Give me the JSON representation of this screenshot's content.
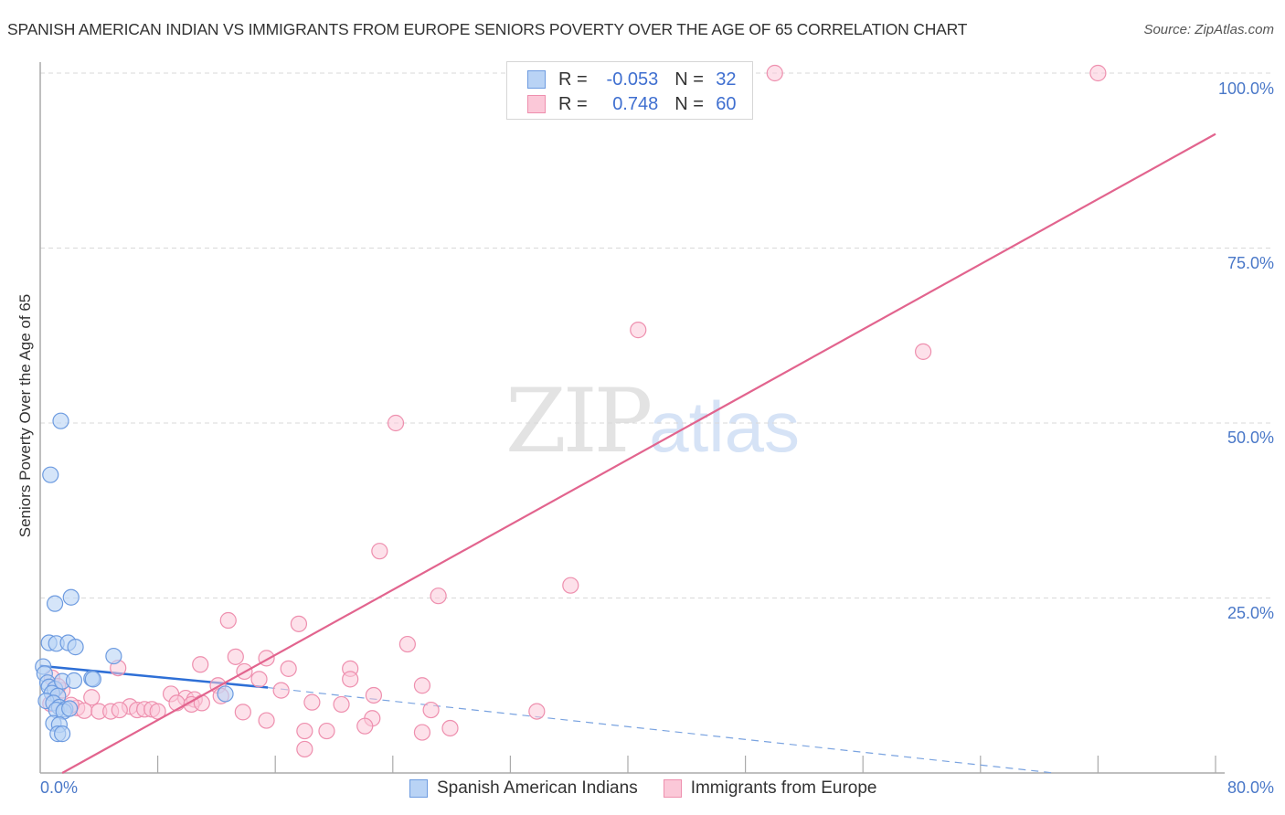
{
  "header": {
    "title": "SPANISH AMERICAN INDIAN VS IMMIGRANTS FROM EUROPE SENIORS POVERTY OVER THE AGE OF 65 CORRELATION CHART",
    "source": "Source: ZipAtlas.com"
  },
  "watermark": {
    "zip": "ZIP",
    "atlas": "atlas"
  },
  "axes": {
    "ylabel": "Seniors Poverty Over the Age of 65",
    "yticks": [
      "100.0%",
      "75.0%",
      "50.0%",
      "25.0%"
    ],
    "xticks": [
      "0.0%",
      "80.0%"
    ]
  },
  "legend": {
    "rows": [
      {
        "r_label": "R =",
        "r_value": "-0.053",
        "n_label": "N =",
        "n_value": "32",
        "color": "#b9d3f5"
      },
      {
        "r_label": "R =",
        "r_value": "0.748",
        "n_label": "N =",
        "n_value": "60",
        "color": "#fbc8d8"
      }
    ],
    "series": [
      "Spanish American Indians",
      "Immigrants from Europe"
    ]
  },
  "colors": {
    "blue_fill": "#b9d3f5",
    "blue_stroke": "#6d9be0",
    "blue_line": "#2e6fd6",
    "pink_fill": "#fbc8d8",
    "pink_stroke": "#ee8fae",
    "pink_line": "#e2648e",
    "tick_text": "#4a78c8"
  },
  "chart_data": {
    "type": "scatter",
    "title": "SPANISH AMERICAN INDIAN VS IMMIGRANTS FROM EUROPE SENIORS POVERTY OVER THE AGE OF 65 CORRELATION CHART",
    "xlabel": "",
    "ylabel": "Seniors Poverty Over the Age of 65",
    "xlim": [
      0,
      80
    ],
    "ylim": [
      0,
      100
    ],
    "grid": "horizontal dashed at 25, 50, 75, 100",
    "legend_position": "bottom",
    "series": [
      {
        "name": "Spanish American Indians",
        "R": -0.053,
        "N": 32,
        "trend": {
          "x0": 0,
          "y0": 15.3,
          "x1": 15.5,
          "y1": 12.2,
          "dashed_extension_to": [
            69,
            0
          ]
        },
        "points": [
          [
            1.4,
            50.3
          ],
          [
            0.7,
            42.6
          ],
          [
            2.1,
            25.1
          ],
          [
            1.0,
            24.2
          ],
          [
            0.6,
            18.6
          ],
          [
            1.1,
            18.5
          ],
          [
            1.9,
            18.6
          ],
          [
            2.4,
            18.0
          ],
          [
            5.0,
            16.7
          ],
          [
            0.2,
            15.2
          ],
          [
            0.3,
            14.2
          ],
          [
            0.5,
            12.9
          ],
          [
            0.6,
            12.3
          ],
          [
            1.0,
            12.0
          ],
          [
            1.5,
            13.1
          ],
          [
            2.3,
            13.2
          ],
          [
            3.5,
            13.5
          ],
          [
            3.6,
            13.4
          ],
          [
            0.8,
            11.4
          ],
          [
            1.2,
            11.0
          ],
          [
            0.4,
            10.3
          ],
          [
            0.9,
            10.0
          ],
          [
            1.3,
            9.4
          ],
          [
            1.7,
            9.1
          ],
          [
            1.1,
            9.0
          ],
          [
            1.6,
            8.8
          ],
          [
            2.0,
            9.2
          ],
          [
            0.9,
            7.1
          ],
          [
            1.3,
            6.9
          ],
          [
            1.2,
            5.6
          ],
          [
            1.5,
            5.6
          ],
          [
            12.6,
            11.3
          ]
        ]
      },
      {
        "name": "Immigrants from Europe",
        "R": 0.748,
        "N": 60,
        "trend": {
          "x0": 1.5,
          "y0": 0,
          "x1": 80,
          "y1": 91.3
        },
        "points": [
          [
            50.0,
            100.0
          ],
          [
            72.0,
            100.0
          ],
          [
            40.7,
            63.3
          ],
          [
            60.1,
            60.2
          ],
          [
            24.2,
            50.0
          ],
          [
            23.1,
            31.7
          ],
          [
            27.1,
            25.3
          ],
          [
            36.1,
            26.8
          ],
          [
            12.8,
            21.8
          ],
          [
            17.6,
            21.3
          ],
          [
            25.0,
            18.4
          ],
          [
            10.9,
            15.5
          ],
          [
            13.3,
            16.6
          ],
          [
            15.4,
            16.4
          ],
          [
            21.1,
            14.9
          ],
          [
            5.3,
            15.0
          ],
          [
            16.9,
            14.9
          ],
          [
            26.0,
            12.5
          ],
          [
            13.9,
            14.5
          ],
          [
            21.1,
            13.4
          ],
          [
            12.1,
            12.5
          ],
          [
            14.9,
            13.4
          ],
          [
            8.9,
            11.3
          ],
          [
            16.4,
            11.8
          ],
          [
            0.8,
            13.6
          ],
          [
            1.5,
            11.8
          ],
          [
            3.5,
            10.8
          ],
          [
            9.9,
            10.7
          ],
          [
            10.5,
            10.5
          ],
          [
            12.3,
            11.0
          ],
          [
            22.7,
            11.1
          ],
          [
            9.3,
            10.0
          ],
          [
            18.5,
            10.1
          ],
          [
            20.5,
            9.8
          ],
          [
            0.7,
            9.9
          ],
          [
            2.5,
            9.3
          ],
          [
            3.0,
            8.9
          ],
          [
            4.0,
            8.8
          ],
          [
            4.8,
            8.8
          ],
          [
            6.1,
            9.5
          ],
          [
            6.6,
            9.0
          ],
          [
            7.1,
            9.1
          ],
          [
            7.6,
            9.1
          ],
          [
            8.0,
            8.8
          ],
          [
            10.3,
            9.8
          ],
          [
            13.8,
            8.7
          ],
          [
            15.4,
            7.5
          ],
          [
            22.6,
            7.8
          ],
          [
            22.1,
            6.7
          ],
          [
            26.6,
            9.0
          ],
          [
            33.8,
            8.8
          ],
          [
            27.9,
            6.4
          ],
          [
            18.0,
            6.0
          ],
          [
            19.5,
            6.0
          ],
          [
            26.0,
            5.8
          ],
          [
            18.0,
            3.4
          ],
          [
            1.2,
            12.4
          ],
          [
            2.1,
            9.7
          ],
          [
            5.4,
            9.0
          ],
          [
            11.0,
            10.0
          ]
        ]
      }
    ]
  }
}
